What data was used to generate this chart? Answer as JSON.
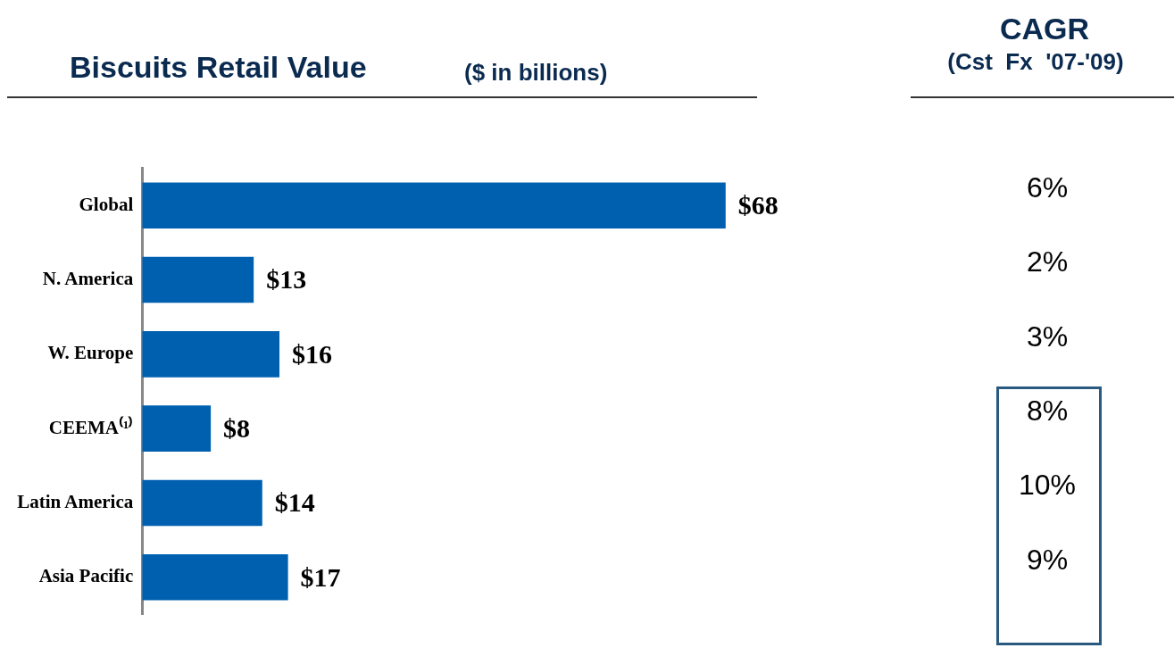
{
  "chart_data": {
    "type": "bar",
    "orientation": "horizontal",
    "title": "Biscuits Retail Value",
    "subtitle": "($ in billions)",
    "categories": [
      "Global",
      "N. America",
      "W. Europe",
      "CEEMA⁽¹⁾",
      "Latin America",
      "Asia Pacific"
    ],
    "values": [
      68,
      13,
      16,
      8,
      14,
      17
    ],
    "color": "#0060b0",
    "data_labels": true,
    "value_labels": [
      "$68",
      "$13",
      "$16",
      "$8",
      "$14",
      "$17"
    ],
    "tick_labels": "y",
    "legend": false,
    "annotations": [
      "CAGR",
      "(Cst  Fx  '07-'09)",
      "6%",
      "2%",
      "3%",
      "8%",
      "10%",
      "9%"
    ]
  }
}
